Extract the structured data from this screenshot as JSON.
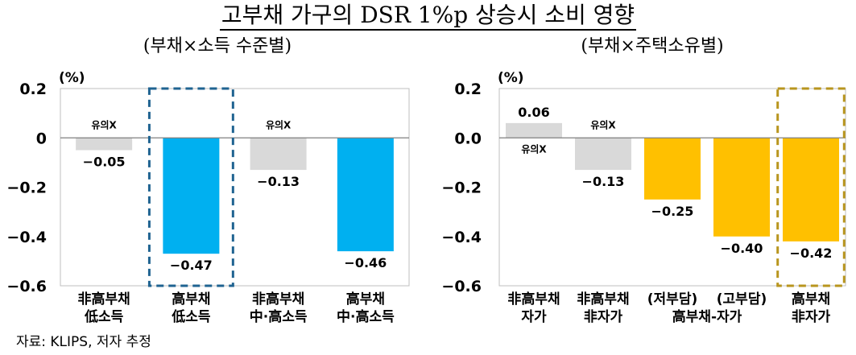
{
  "title": "고부채 가구의 DSR 1%p 상승시 소비 영향",
  "source": "자료: KLIPS, 저자 추정",
  "chart_data": [
    {
      "type": "bar",
      "subtitle": "(부채×소득 수준별)",
      "unit": "(%)",
      "ylim": [
        -0.6,
        0.2
      ],
      "yticks": [
        "0.2",
        "0",
        "-0.2",
        "-0.4",
        "-0.6"
      ],
      "categories": [
        [
          "非高부채",
          "低소득"
        ],
        [
          "高부채",
          "低소득"
        ],
        [
          "非高부채",
          "中·高소득"
        ],
        [
          "高부채",
          "中·高소득"
        ]
      ],
      "values": [
        -0.05,
        -0.47,
        -0.13,
        -0.46
      ],
      "value_labels": [
        "-0.05",
        "-0.47",
        "-0.13",
        "-0.46"
      ],
      "annotations": [
        "유의X",
        "",
        "유의X",
        ""
      ],
      "bar_colors": [
        "#d9d9d9",
        "#00b0f0",
        "#d9d9d9",
        "#00b0f0"
      ],
      "highlight": {
        "index": 1,
        "color": "#1f6391"
      }
    },
    {
      "type": "bar",
      "subtitle": "(부채×주택소유별)",
      "unit": "(%)",
      "ylim": [
        -0.6,
        0.2
      ],
      "yticks": [
        "0.2",
        "0.0",
        "-0.2",
        "-0.4",
        "-0.6"
      ],
      "categories": [
        [
          "非高부채",
          "자가"
        ],
        [
          "非高부채",
          "非자가"
        ],
        [
          "(저부담)",
          ""
        ],
        [
          "(고부담)",
          ""
        ],
        [
          "高부채",
          "非자가"
        ]
      ],
      "group_label": "高부채-자가",
      "values": [
        0.06,
        -0.13,
        -0.25,
        -0.4,
        -0.42
      ],
      "value_labels": [
        "0.06",
        "-0.13",
        "-0.25",
        "-0.40",
        "-0.42"
      ],
      "annotations": [
        "유의X",
        "유의X",
        "",
        "",
        ""
      ],
      "bar_colors": [
        "#d9d9d9",
        "#d9d9d9",
        "#ffc000",
        "#ffc000",
        "#ffc000"
      ],
      "highlight": {
        "index": 4,
        "color": "#b8951e"
      }
    }
  ]
}
